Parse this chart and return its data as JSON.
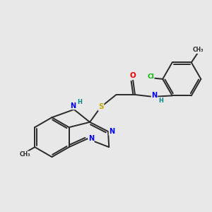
{
  "background_color": "#e8e8e8",
  "bond_color": "#2a2a2a",
  "atom_colors": {
    "N": "#0000ee",
    "O": "#ee0000",
    "S": "#bbaa00",
    "Cl": "#00bb00",
    "H": "#008888",
    "C": "#2a2a2a"
  },
  "figsize": [
    3.0,
    3.0
  ],
  "dpi": 100
}
